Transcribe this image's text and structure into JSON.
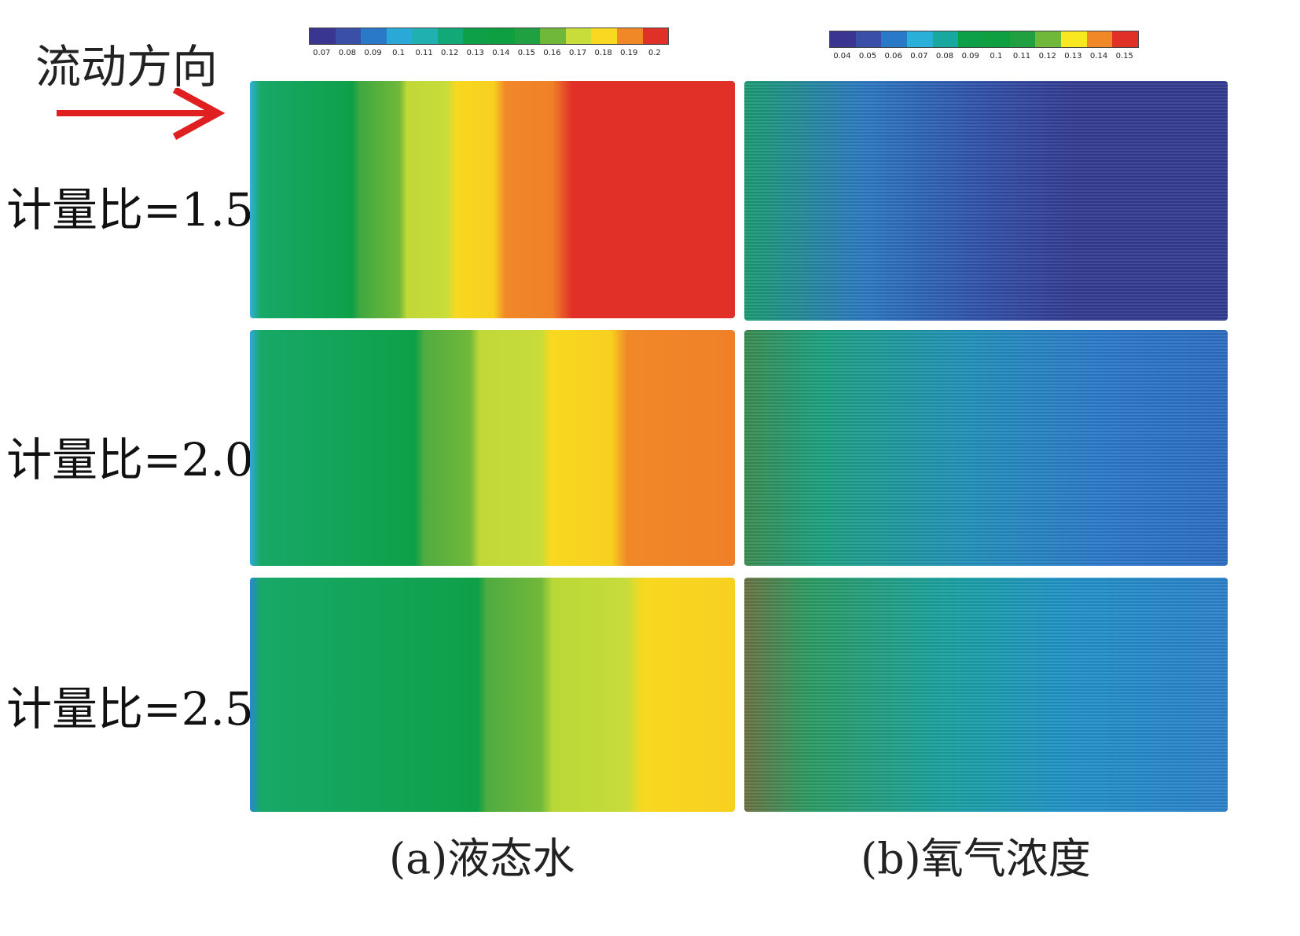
{
  "flow_direction_label": "流动方向",
  "rows": [
    {
      "label": "计量比=1.5"
    },
    {
      "label": "计量比=2.0"
    },
    {
      "label": "计量比=2.5"
    }
  ],
  "panel_a": {
    "caption": "(a)液态水",
    "colorbar_ticks": [
      "0.07",
      "0.08",
      "0.09",
      "0.1",
      "0.11",
      "0.12",
      "0.13",
      "0.14",
      "0.15",
      "0.16",
      "0.17",
      "0.18",
      "0.19",
      "0.2"
    ],
    "colorbar_colors": [
      "#3a3590",
      "#3a4fa8",
      "#2a78c8",
      "#2aa8d8",
      "#20b0b0",
      "#12a878",
      "#0ea048",
      "#0ea040",
      "#20a040",
      "#70b83a",
      "#c8dc3a",
      "#f8d820",
      "#f08828",
      "#e03028"
    ]
  },
  "panel_b": {
    "caption": "(b)氧气浓度",
    "colorbar_ticks": [
      "0.04",
      "0.05",
      "0.06",
      "0.07",
      "0.08",
      "0.09",
      "0.1",
      "0.11",
      "0.12",
      "0.13",
      "0.14",
      "0.15"
    ],
    "colorbar_colors": [
      "#3a3590",
      "#3a4fa8",
      "#2a78c8",
      "#2ab0d8",
      "#18a8a0",
      "#0ea048",
      "#0ea040",
      "#20a040",
      "#70b83a",
      "#f8e820",
      "#f08828",
      "#e03028"
    ]
  },
  "arrow_color": "#e02020"
}
